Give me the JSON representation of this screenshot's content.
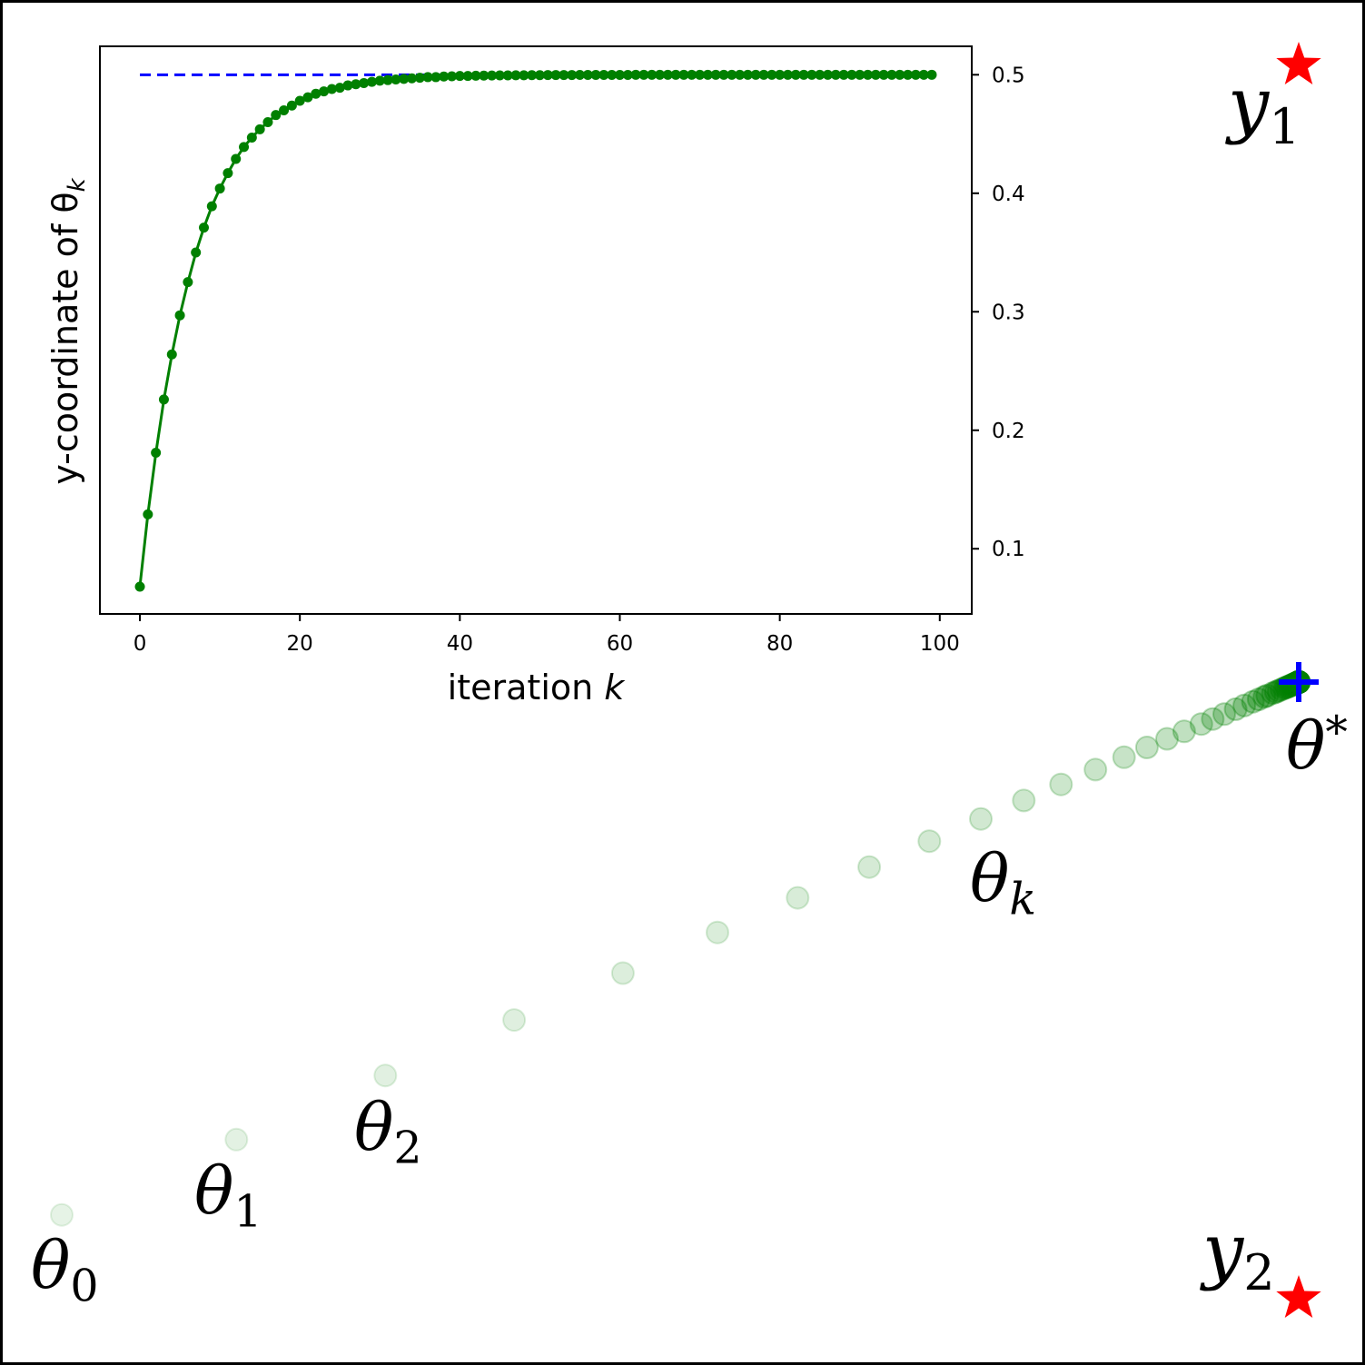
{
  "chart_data": [
    {
      "type": "scatter",
      "description_role": "outer trajectory",
      "targets": [
        {
          "name": "y1",
          "label_main": "y",
          "label_sub": "1",
          "marker": "star",
          "x": 1.0,
          "y": 1.0
        },
        {
          "name": "y2",
          "label_main": "y",
          "label_sub": "2",
          "marker": "star",
          "x": 1.0,
          "y": 0.0
        }
      ],
      "optimum": {
        "label_main": "θ",
        "label_sup": "*",
        "marker": "plus",
        "x": 1.0,
        "y": 0.5
      },
      "iterate_labels": [
        {
          "main": "θ",
          "sub": "0",
          "index": 0
        },
        {
          "main": "θ",
          "sub": "1",
          "index": 1
        },
        {
          "main": "θ",
          "sub": "2",
          "index": 2
        },
        {
          "main": "θ",
          "sub": "k",
          "index": 11
        }
      ],
      "colors": {
        "iterates": "#008000",
        "targets": "#ff0000",
        "optimum": "#0000ff"
      }
    },
    {
      "type": "line",
      "role": "inset",
      "xlabel": "iteration k",
      "ylabel": "y-coordinate of θ_k",
      "xlim": [
        -5,
        104
      ],
      "ylim": [
        0.045,
        0.524
      ],
      "xticks": [
        0,
        20,
        40,
        60,
        80,
        100
      ],
      "yticks": [
        0.1,
        0.2,
        0.3,
        0.4,
        0.5
      ],
      "ytick_labels": [
        "0.1",
        "0.2",
        "0.3",
        "0.4",
        "0.5"
      ],
      "y_axis_side": "right",
      "reference_line": {
        "y": 0.5,
        "x_start": 0,
        "x_end": 99,
        "style": "dashed",
        "color": "#0000ff"
      },
      "series": [
        {
          "color": "#008000",
          "x": [
            0,
            1,
            2,
            3,
            4,
            5,
            6,
            7,
            8,
            9,
            10,
            11,
            12,
            13,
            14,
            15,
            16,
            17,
            18,
            19,
            20,
            21,
            22,
            23,
            24,
            25,
            26,
            27,
            28,
            29,
            30,
            31,
            32,
            33,
            34,
            35,
            36,
            37,
            38,
            39,
            40,
            41,
            42,
            43,
            44,
            45,
            46,
            47,
            48,
            49,
            50,
            51,
            52,
            53,
            54,
            55,
            56,
            57,
            58,
            59,
            60,
            61,
            62,
            63,
            64,
            65,
            66,
            67,
            68,
            69,
            70,
            71,
            72,
            73,
            74,
            75,
            76,
            77,
            78,
            79,
            80,
            81,
            82,
            83,
            84,
            85,
            86,
            87,
            88,
            89,
            90,
            91,
            92,
            93,
            94,
            95,
            96,
            97,
            98,
            99
          ],
          "y": [
            0.068,
            0.129,
            0.181,
            0.226,
            0.264,
            0.297,
            0.325,
            0.35,
            0.371,
            0.389,
            0.404,
            0.417,
            0.429,
            0.439,
            0.447,
            0.454,
            0.46,
            0.466,
            0.47,
            0.474,
            0.478,
            0.481,
            0.484,
            0.486,
            0.488,
            0.489,
            0.491,
            0.492,
            0.493,
            0.494,
            0.495,
            0.4955,
            0.496,
            0.4965,
            0.497,
            0.4975,
            0.498,
            0.498,
            0.4985,
            0.4987,
            0.499,
            0.499,
            0.4992,
            0.4993,
            0.4994,
            0.4995,
            0.4995,
            0.4996,
            0.4996,
            0.4997,
            0.4997,
            0.4998,
            0.4998,
            0.4998,
            0.4998,
            0.4999,
            0.4999,
            0.4999,
            0.4999,
            0.4999,
            0.4999,
            0.4999,
            0.5,
            0.5,
            0.5,
            0.5,
            0.5,
            0.5,
            0.5,
            0.5,
            0.5,
            0.5,
            0.5,
            0.5,
            0.5,
            0.5,
            0.5,
            0.5,
            0.5,
            0.5,
            0.5,
            0.5,
            0.5,
            0.5,
            0.5,
            0.5,
            0.5,
            0.5,
            0.5,
            0.5,
            0.5,
            0.5,
            0.5,
            0.5,
            0.5,
            0.5,
            0.5,
            0.5,
            0.5,
            0.5
          ]
        }
      ]
    }
  ]
}
